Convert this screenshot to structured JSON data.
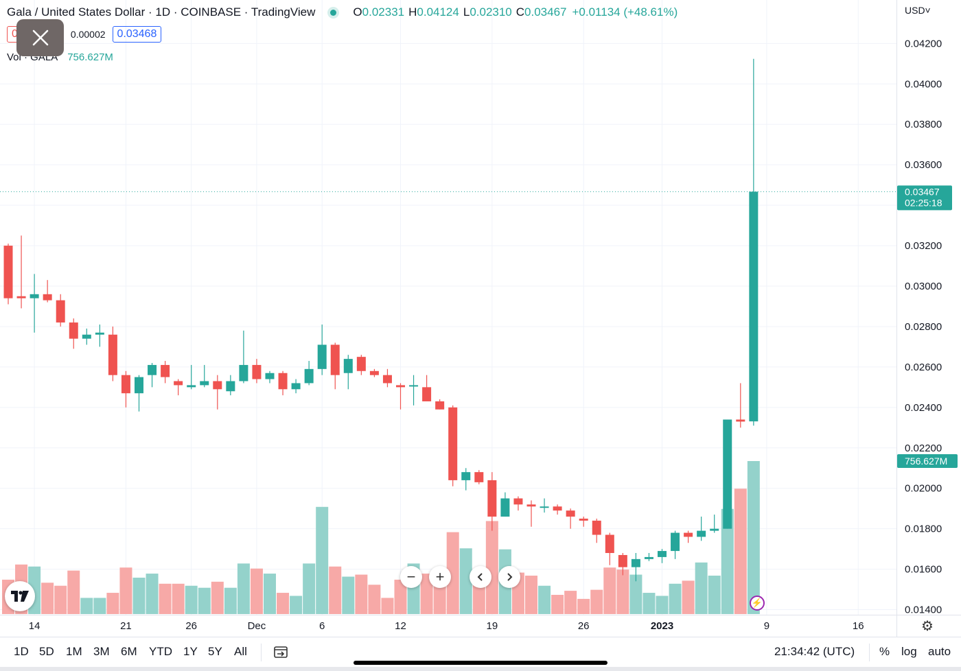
{
  "header": {
    "symbol": "Gala / United States Dollar · 1D · COINBASE · TradingView",
    "ohlc": {
      "o_label": "O",
      "o_value": "0.02331",
      "h_label": "H",
      "h_value": "0.04124",
      "l_label": "L",
      "l_value": "0.02310",
      "c_label": "C",
      "c_value": "0.03467",
      "change": "+0.01134 (+48.61%)"
    },
    "sell_box": "0",
    "spread": "0.00002",
    "buy_box": "0.03468",
    "volume_label": "Vol · GALA",
    "volume_value": "756.627M"
  },
  "axis": {
    "currency": "USD",
    "last_price_label": "0.03467",
    "countdown": "02:25:18",
    "volume_badge": "756.627M"
  },
  "bottom_bar": {
    "ranges": [
      "1D",
      "5D",
      "1M",
      "3M",
      "6M",
      "YTD",
      "1Y",
      "5Y",
      "All"
    ],
    "time": "21:34:42 (UTC)",
    "percent": "%",
    "log": "log",
    "auto": "auto"
  },
  "colors": {
    "up": "#26a69a",
    "down": "#ef5350",
    "up_volume": "#94d2cb",
    "down_volume": "#f7a9a7"
  },
  "chart_data": {
    "type": "candlestick",
    "title": "Gala / United States Dollar · 1D · COINBASE · TradingView",
    "ylabel": "USD",
    "ylim": [
      0.013,
      0.0432
    ],
    "y_ticks": [
      "0.01400",
      "0.01600",
      "0.01800",
      "0.02000",
      "0.02200",
      "0.02400",
      "0.02600",
      "0.02800",
      "0.03000",
      "0.03200",
      "0.03400",
      "0.03600",
      "0.03800",
      "0.04000",
      "0.04200"
    ],
    "x_ticks": [
      {
        "label": "14",
        "index": 2,
        "bold": false
      },
      {
        "label": "21",
        "index": 9,
        "bold": false
      },
      {
        "label": "26",
        "index": 14,
        "bold": false
      },
      {
        "label": "Dec",
        "index": 19,
        "bold": false
      },
      {
        "label": "6",
        "index": 24,
        "bold": false
      },
      {
        "label": "12",
        "index": 30,
        "bold": false
      },
      {
        "label": "19",
        "index": 37,
        "bold": false
      },
      {
        "label": "26",
        "index": 44,
        "bold": false
      },
      {
        "label": "2023",
        "index": 50,
        "bold": true
      },
      {
        "label": "9",
        "index": 58,
        "bold": false
      },
      {
        "label": "16",
        "index": 65,
        "bold": false
      }
    ],
    "last_price": 0.03467,
    "volume_max": 756.627,
    "volume_unit": "M",
    "candles": [
      {
        "o": 0.032,
        "h": 0.0321,
        "l": 0.0291,
        "c": 0.0294,
        "v": 170
      },
      {
        "o": 0.0295,
        "h": 0.0325,
        "l": 0.0289,
        "c": 0.0294,
        "v": 245
      },
      {
        "o": 0.0294,
        "h": 0.0306,
        "l": 0.0277,
        "c": 0.0296,
        "v": 235
      },
      {
        "o": 0.0296,
        "h": 0.0303,
        "l": 0.0292,
        "c": 0.0293,
        "v": 155
      },
      {
        "o": 0.0293,
        "h": 0.0296,
        "l": 0.028,
        "c": 0.0282,
        "v": 140
      },
      {
        "o": 0.0282,
        "h": 0.0284,
        "l": 0.0269,
        "c": 0.0274,
        "v": 215
      },
      {
        "o": 0.0274,
        "h": 0.0279,
        "l": 0.0271,
        "c": 0.0276,
        "v": 80
      },
      {
        "o": 0.0276,
        "h": 0.0281,
        "l": 0.027,
        "c": 0.0277,
        "v": 80
      },
      {
        "o": 0.0276,
        "h": 0.028,
        "l": 0.0253,
        "c": 0.0256,
        "v": 105
      },
      {
        "o": 0.0256,
        "h": 0.0258,
        "l": 0.024,
        "c": 0.0247,
        "v": 230
      },
      {
        "o": 0.0247,
        "h": 0.0256,
        "l": 0.0238,
        "c": 0.0255,
        "v": 180
      },
      {
        "o": 0.0256,
        "h": 0.0262,
        "l": 0.025,
        "c": 0.0261,
        "v": 200
      },
      {
        "o": 0.0261,
        "h": 0.0263,
        "l": 0.0252,
        "c": 0.0255,
        "v": 150
      },
      {
        "o": 0.0253,
        "h": 0.0254,
        "l": 0.0246,
        "c": 0.0251,
        "v": 150
      },
      {
        "o": 0.025,
        "h": 0.0261,
        "l": 0.0249,
        "c": 0.0251,
        "v": 140
      },
      {
        "o": 0.0251,
        "h": 0.0261,
        "l": 0.025,
        "c": 0.0253,
        "v": 130
      },
      {
        "o": 0.0253,
        "h": 0.0256,
        "l": 0.0239,
        "c": 0.0249,
        "v": 160
      },
      {
        "o": 0.0248,
        "h": 0.0256,
        "l": 0.0246,
        "c": 0.0253,
        "v": 130
      },
      {
        "o": 0.0253,
        "h": 0.0278,
        "l": 0.0252,
        "c": 0.0261,
        "v": 250
      },
      {
        "o": 0.0261,
        "h": 0.0264,
        "l": 0.0252,
        "c": 0.0254,
        "v": 225
      },
      {
        "o": 0.0254,
        "h": 0.0258,
        "l": 0.0252,
        "c": 0.0257,
        "v": 200
      },
      {
        "o": 0.0257,
        "h": 0.0258,
        "l": 0.0246,
        "c": 0.0249,
        "v": 105
      },
      {
        "o": 0.0249,
        "h": 0.0254,
        "l": 0.0247,
        "c": 0.0252,
        "v": 90
      },
      {
        "o": 0.0252,
        "h": 0.0263,
        "l": 0.0251,
        "c": 0.0259,
        "v": 250
      },
      {
        "o": 0.0259,
        "h": 0.0281,
        "l": 0.0256,
        "c": 0.0271,
        "v": 530
      },
      {
        "o": 0.0271,
        "h": 0.0272,
        "l": 0.0249,
        "c": 0.0256,
        "v": 235
      },
      {
        "o": 0.0257,
        "h": 0.0266,
        "l": 0.0249,
        "c": 0.0264,
        "v": 185
      },
      {
        "o": 0.0265,
        "h": 0.0266,
        "l": 0.0256,
        "c": 0.0258,
        "v": 195
      },
      {
        "o": 0.0258,
        "h": 0.0259,
        "l": 0.0255,
        "c": 0.0256,
        "v": 145
      },
      {
        "o": 0.0256,
        "h": 0.0259,
        "l": 0.025,
        "c": 0.0252,
        "v": 80
      },
      {
        "o": 0.0251,
        "h": 0.0252,
        "l": 0.0239,
        "c": 0.025,
        "v": 170
      },
      {
        "o": 0.0251,
        "h": 0.0256,
        "l": 0.0241,
        "c": 0.0251,
        "v": 250
      },
      {
        "o": 0.025,
        "h": 0.0256,
        "l": 0.0243,
        "c": 0.0243,
        "v": 200
      },
      {
        "o": 0.0243,
        "h": 0.0244,
        "l": 0.0239,
        "c": 0.0239,
        "v": 210
      },
      {
        "o": 0.024,
        "h": 0.0241,
        "l": 0.0201,
        "c": 0.0204,
        "v": 405
      },
      {
        "o": 0.0204,
        "h": 0.021,
        "l": 0.0199,
        "c": 0.0208,
        "v": 325
      },
      {
        "o": 0.0208,
        "h": 0.0209,
        "l": 0.0202,
        "c": 0.0203,
        "v": 145
      },
      {
        "o": 0.0204,
        "h": 0.0208,
        "l": 0.0179,
        "c": 0.0186,
        "v": 460
      },
      {
        "o": 0.0186,
        "h": 0.0198,
        "l": 0.0186,
        "c": 0.0195,
        "v": 320
      },
      {
        "o": 0.0195,
        "h": 0.0196,
        "l": 0.0189,
        "c": 0.0192,
        "v": 205
      },
      {
        "o": 0.0192,
        "h": 0.0194,
        "l": 0.0181,
        "c": 0.0191,
        "v": 190
      },
      {
        "o": 0.0191,
        "h": 0.0195,
        "l": 0.0188,
        "c": 0.0191,
        "v": 140
      },
      {
        "o": 0.0191,
        "h": 0.0192,
        "l": 0.0187,
        "c": 0.0189,
        "v": 95
      },
      {
        "o": 0.0189,
        "h": 0.019,
        "l": 0.018,
        "c": 0.0186,
        "v": 115
      },
      {
        "o": 0.0185,
        "h": 0.0186,
        "l": 0.0181,
        "c": 0.0184,
        "v": 75
      },
      {
        "o": 0.0184,
        "h": 0.0185,
        "l": 0.0173,
        "c": 0.0177,
        "v": 120
      },
      {
        "o": 0.0177,
        "h": 0.0178,
        "l": 0.0162,
        "c": 0.0168,
        "v": 230
      },
      {
        "o": 0.0167,
        "h": 0.0168,
        "l": 0.0157,
        "c": 0.0161,
        "v": 220
      },
      {
        "o": 0.0161,
        "h": 0.0168,
        "l": 0.0154,
        "c": 0.0165,
        "v": 195
      },
      {
        "o": 0.0165,
        "h": 0.0168,
        "l": 0.0164,
        "c": 0.0166,
        "v": 105
      },
      {
        "o": 0.0166,
        "h": 0.017,
        "l": 0.0163,
        "c": 0.0169,
        "v": 90
      },
      {
        "o": 0.0169,
        "h": 0.0179,
        "l": 0.0165,
        "c": 0.0178,
        "v": 150
      },
      {
        "o": 0.0178,
        "h": 0.0179,
        "l": 0.0173,
        "c": 0.0176,
        "v": 165
      },
      {
        "o": 0.0176,
        "h": 0.0186,
        "l": 0.0174,
        "c": 0.0179,
        "v": 255
      },
      {
        "o": 0.0179,
        "h": 0.0187,
        "l": 0.0178,
        "c": 0.018,
        "v": 190
      },
      {
        "o": 0.018,
        "h": 0.0234,
        "l": 0.018,
        "c": 0.0234,
        "v": 520
      },
      {
        "o": 0.0234,
        "h": 0.0252,
        "l": 0.023,
        "c": 0.0233,
        "v": 620
      },
      {
        "o": 0.02331,
        "h": 0.04124,
        "l": 0.0231,
        "c": 0.03467,
        "v": 756.627
      }
    ]
  }
}
